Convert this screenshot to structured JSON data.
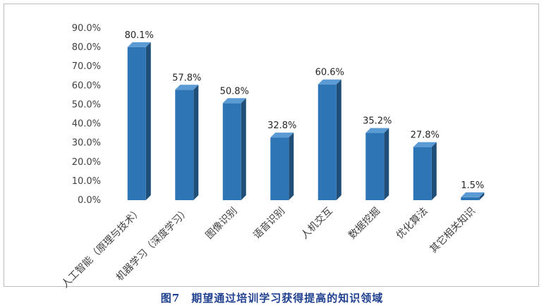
{
  "chart_data": {
    "type": "bar",
    "title": "",
    "xlabel": "",
    "ylabel": "",
    "ylim": [
      0,
      90
    ],
    "ytick_step": 10,
    "ytick_format": "percent_1dp",
    "grid": false,
    "legend": "none",
    "style": "3d-column",
    "categories": [
      "人工智能（原理与技术）",
      "机器学习（深度学习）",
      "图像识别",
      "语音识别",
      "人机交互",
      "数据挖掘",
      "优化算法",
      "其它相关知识"
    ],
    "values": [
      80.1,
      57.8,
      50.8,
      32.8,
      60.6,
      35.2,
      27.8,
      1.5
    ],
    "value_labels": [
      "80.1%",
      "57.8%",
      "50.8%",
      "32.8%",
      "60.6%",
      "35.2%",
      "27.8%",
      "1.5%"
    ],
    "bar_colors": {
      "front": "#2e75b6",
      "side": "#1f4e79",
      "top": "#5b9bd5"
    },
    "axis_color": "#404040"
  },
  "caption": "图7　期望通过培训学习获得提高的知识领域"
}
